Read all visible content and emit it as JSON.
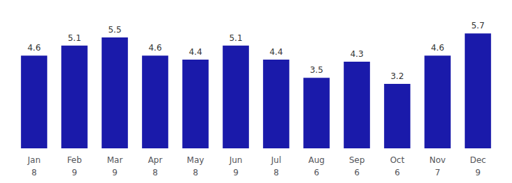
{
  "chart_data": {
    "type": "bar",
    "categories": [
      "Jan",
      "Feb",
      "Mar",
      "Apr",
      "May",
      "Jun",
      "Jul",
      "Aug",
      "Sep",
      "Oct",
      "Nov",
      "Dec"
    ],
    "values": [
      4.6,
      5.1,
      5.5,
      4.6,
      4.4,
      5.1,
      4.4,
      3.5,
      4.3,
      3.2,
      4.6,
      5.7
    ],
    "bottom_numbers": [
      8,
      9,
      9,
      8,
      8,
      9,
      8,
      6,
      6,
      6,
      7,
      9
    ],
    "color": "#1a1aaa",
    "ylim": [
      0,
      6.5
    ],
    "grid": false,
    "data_labels": true,
    "tick_labels": "x"
  }
}
